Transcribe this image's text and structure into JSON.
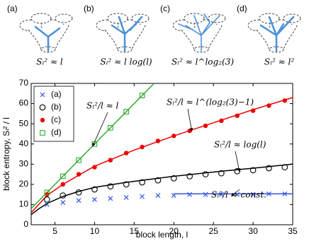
{
  "panels": [
    {
      "label": "(a)",
      "formula": "Sₗ² ≈ l"
    },
    {
      "label": "(b)",
      "formula": "Sₗ² ≈ l log(l)"
    },
    {
      "label": "(c)",
      "formula": "Sₗ² ≈ l^log₂(3)"
    },
    {
      "label": "(d)",
      "formula": "Sₗ² ≈ l²"
    }
  ],
  "chart_data": {
    "type": "scatter",
    "x_label": "block length, l",
    "y_label": "block entropy, Sₗ² / l",
    "xlim": [
      2,
      35
    ],
    "xticks": [
      5,
      10,
      15,
      20,
      25,
      30,
      35
    ],
    "ylim": [
      0,
      70
    ],
    "yticks": [
      0,
      10,
      20,
      30,
      40,
      50,
      60,
      70
    ],
    "legend": "top-left",
    "x": [
      4,
      6,
      8,
      10,
      12,
      14,
      16,
      18,
      20,
      22,
      24,
      26,
      28,
      30,
      32,
      34
    ],
    "series": [
      {
        "name": "(a)",
        "color": "#3355dd",
        "marker": "x",
        "values": [
          10,
          11,
          12,
          12.5,
          13,
          13.5,
          14,
          14.5,
          14.5,
          15,
          15,
          15,
          15,
          15,
          15.3,
          15.3
        ]
      },
      {
        "name": "(b)",
        "color": "#000000",
        "marker": "circle",
        "values": [
          12.5,
          14.5,
          16,
          17.5,
          19,
          20,
          21,
          22,
          23,
          24,
          25,
          25.5,
          26.5,
          27,
          28,
          28.5
        ]
      },
      {
        "name": "(c)",
        "color": "#ee0000",
        "marker": "dot",
        "values": [
          15,
          20,
          25,
          28.5,
          32,
          35.5,
          38.5,
          41.5,
          44,
          46.5,
          49,
          51.5,
          54,
          56.5,
          59,
          61.5
        ]
      },
      {
        "name": "(d)",
        "color": "#33aa33",
        "marker": "square",
        "values": [
          16,
          24,
          32,
          40,
          48,
          56,
          64,
          null,
          null,
          null,
          null,
          null,
          null,
          null,
          null,
          null
        ]
      }
    ],
    "fits": [
      {
        "color": "#3355dd",
        "x": [
          20,
          35
        ],
        "values": [
          15.3,
          15.3
        ]
      },
      {
        "color": "#000000",
        "x": [
          2,
          3,
          4,
          6,
          8,
          10,
          14,
          20,
          26,
          30,
          35
        ],
        "values": [
          5,
          8,
          10.5,
          14,
          16.5,
          18.5,
          21,
          24,
          26.5,
          28,
          30
        ]
      },
      {
        "color": "#ee0000",
        "x": [
          2,
          4,
          6,
          10,
          15,
          20,
          25,
          30,
          35
        ],
        "values": [
          6,
          14.5,
          20,
          29,
          37,
          44,
          50.5,
          57,
          63
        ]
      },
      {
        "color": "#33aa33",
        "x": [
          2,
          17.5
        ],
        "values": [
          8,
          70
        ]
      }
    ],
    "annotations": [
      "Sₗ²/l ≈ l",
      "Sₗ²/l ≈ l^(log₂(3)−1)",
      "Sₗ²/l ≈ log(l)",
      "Sₗ²/l ≈ const."
    ]
  }
}
